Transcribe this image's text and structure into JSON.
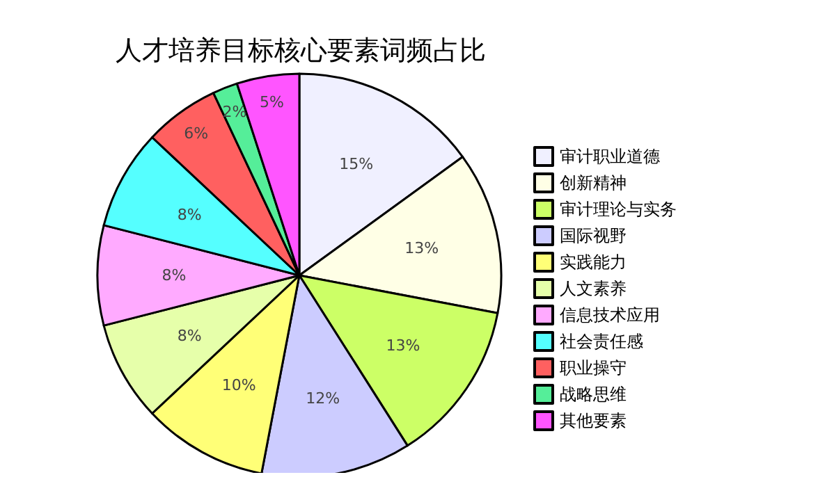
{
  "chart_data": {
    "type": "pie",
    "title": "人才培养目标核心要素词频占比",
    "categories": [
      "审计职业道德",
      "创新精神",
      "审计理论与实务",
      "国际视野",
      "实践能力",
      "人文素养",
      "信息技术应用",
      "社会责任感",
      "职业操守",
      "战略思维",
      "其他要素"
    ],
    "values": [
      15,
      13,
      13,
      12,
      10,
      8,
      8,
      8,
      6,
      2,
      5
    ],
    "colors": [
      "#f0f0ff",
      "#ffffe6",
      "#ccff66",
      "#ccccff",
      "#ffff77",
      "#e6ffaa",
      "#ffaaff",
      "#55ffff",
      "#ff6060",
      "#55ee99",
      "#ff55ff"
    ],
    "value_labels": [
      "15%",
      "13%",
      "13%",
      "12%",
      "10%",
      "8%",
      "8%",
      "8%",
      "6%",
      "2%",
      "5%"
    ],
    "legend": "right"
  }
}
